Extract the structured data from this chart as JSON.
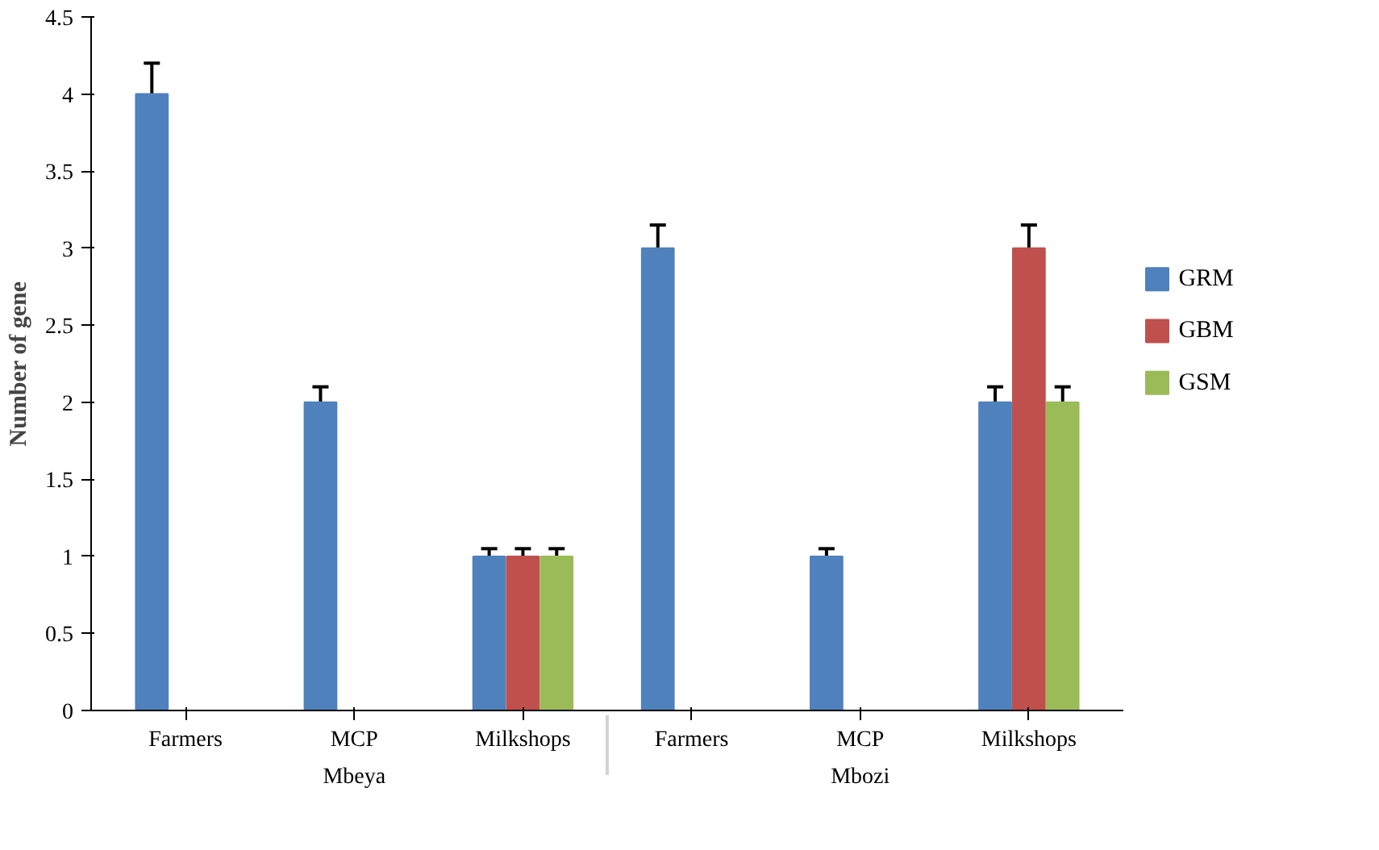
{
  "chart_data": {
    "type": "bar",
    "ylabel": "Number of gene",
    "categories": [
      "Farmers",
      "MCP",
      "Milkshops",
      "Farmers",
      "MCP",
      "Milkshops"
    ],
    "annotations": [
      "Mbeya",
      "Mbozi"
    ],
    "series": [
      {
        "name": "GRM",
        "color": "#4f81bd",
        "values": [
          4,
          2,
          1,
          3,
          1,
          2
        ],
        "errors": [
          0.2,
          0.1,
          0.05,
          0.15,
          0.05,
          0.1
        ]
      },
      {
        "name": "GBM",
        "color": "#c0504d",
        "values": [
          null,
          null,
          1,
          null,
          null,
          3
        ],
        "errors": [
          null,
          null,
          0.05,
          null,
          null,
          0.15
        ]
      },
      {
        "name": "GSM",
        "color": "#9bbb59",
        "values": [
          null,
          null,
          1,
          null,
          null,
          2
        ],
        "errors": [
          null,
          null,
          0.05,
          null,
          null,
          0.1
        ]
      }
    ],
    "ylim": [
      0,
      4.5
    ],
    "yticks": [
      0,
      0.5,
      1,
      1.5,
      2,
      2.5,
      3,
      3.5,
      4,
      4.5
    ],
    "grid": false,
    "legend": "right"
  }
}
